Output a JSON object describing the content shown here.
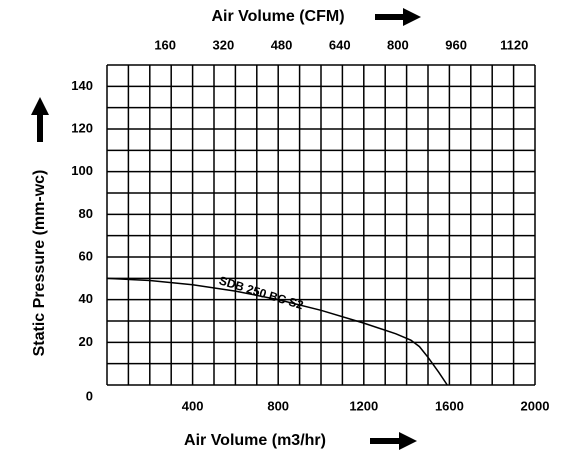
{
  "chart_data": {
    "type": "line",
    "xlabel": "Air Volume (m3/hr)",
    "x2label": "Air Volume (CFM)",
    "ylabel": "Static Pressure (mm-wc)",
    "xlim": [
      0,
      2000
    ],
    "xticks": [
      400,
      800,
      1200,
      1600,
      2000
    ],
    "x2lim": [
      0,
      1177
    ],
    "x2ticks": [
      160,
      320,
      480,
      640,
      800,
      960,
      1120
    ],
    "ylim": [
      0,
      150
    ],
    "yticks": [
      0,
      20,
      40,
      60,
      80,
      100,
      120,
      140
    ],
    "grid": true,
    "series": [
      {
        "name": "SDB 250 BC S2",
        "color": "#000000",
        "x": [
          0,
          200,
          400,
          600,
          800,
          1000,
          1200,
          1350,
          1420,
          1460,
          1500,
          1550,
          1590
        ],
        "values": [
          50,
          49,
          47,
          44,
          40,
          35,
          29,
          24,
          21,
          18,
          13,
          6,
          0
        ]
      }
    ]
  }
}
